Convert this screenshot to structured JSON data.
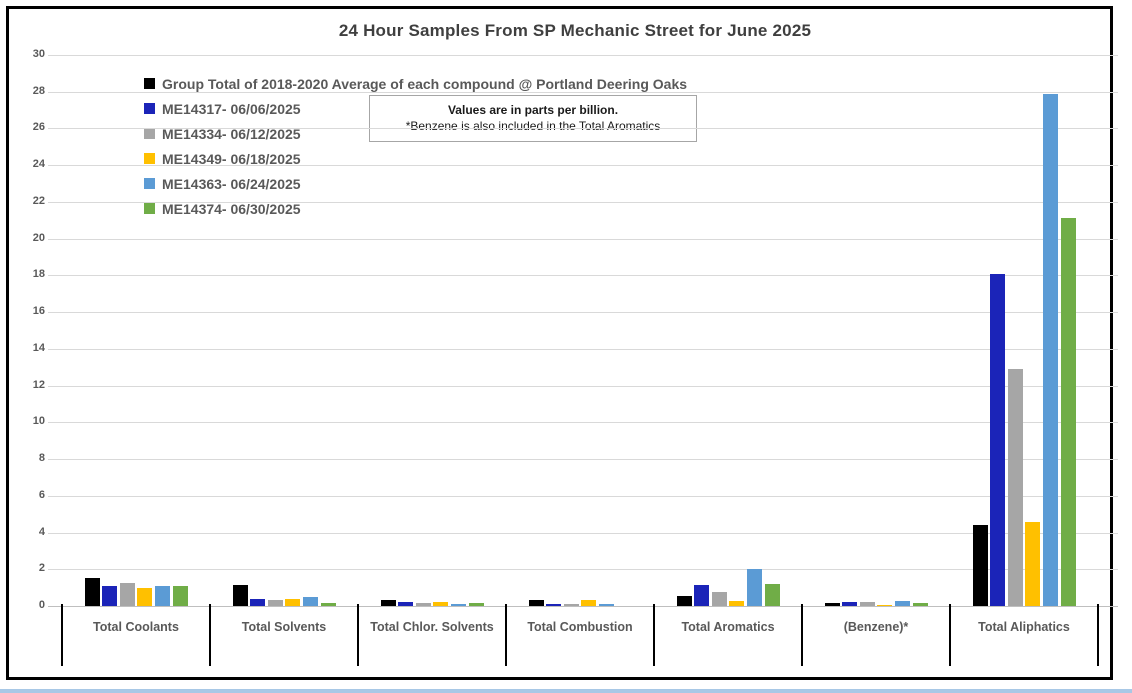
{
  "chart": {
    "title": "24 Hour Samples From SP Mechanic Street for June 2025",
    "note_line1": "Values are in parts per billion.",
    "note_line2": "*Benzene is also included in the Total Aromatics"
  },
  "chart_data": {
    "type": "bar",
    "title": "24 Hour Samples From SP Mechanic Street for June 2025",
    "categories": [
      "Total Coolants",
      "Total Solvents",
      "Total Chlor. Solvents",
      "Total Combustion",
      "Total Aromatics",
      "(Benzene)*",
      "Total Aliphatics"
    ],
    "series": [
      {
        "name": "Group Total of 2018-2020 Average of each compound @ Portland Deering Oaks",
        "color": "#000000",
        "values": [
          1.5,
          1.15,
          0.35,
          0.3,
          0.55,
          0.15,
          4.4
        ]
      },
      {
        "name": "ME14317- 06/06/2025",
        "color": "#1B24B8",
        "values": [
          1.1,
          0.4,
          0.2,
          0.1,
          1.15,
          0.2,
          18.1
        ]
      },
      {
        "name": "ME14334- 06/12/2025",
        "color": "#A6A6A6",
        "values": [
          1.25,
          0.3,
          0.17,
          0.1,
          0.75,
          0.2,
          12.9
        ]
      },
      {
        "name": "ME14349- 06/18/2025",
        "color": "#FFC000",
        "values": [
          1.0,
          0.4,
          0.2,
          0.35,
          0.25,
          0.08,
          4.6
        ]
      },
      {
        "name": "ME14363- 06/24/2025",
        "color": "#5B9BD5",
        "values": [
          1.1,
          0.5,
          0.12,
          0.1,
          2.0,
          0.25,
          27.9
        ]
      },
      {
        "name": "ME14374- 06/30/2025",
        "color": "#70AD47",
        "values": [
          1.1,
          0.15,
          0.15,
          0,
          1.2,
          0.18,
          21.1
        ]
      }
    ],
    "ylabel": "",
    "xlabel": "",
    "ylim": [
      0,
      30
    ],
    "ytick_step": 2,
    "grid": true,
    "legend_position": "top-left",
    "annotations": [
      "Values are in parts per billion.",
      "*Benzene is also included in the Total Aromatics"
    ]
  }
}
